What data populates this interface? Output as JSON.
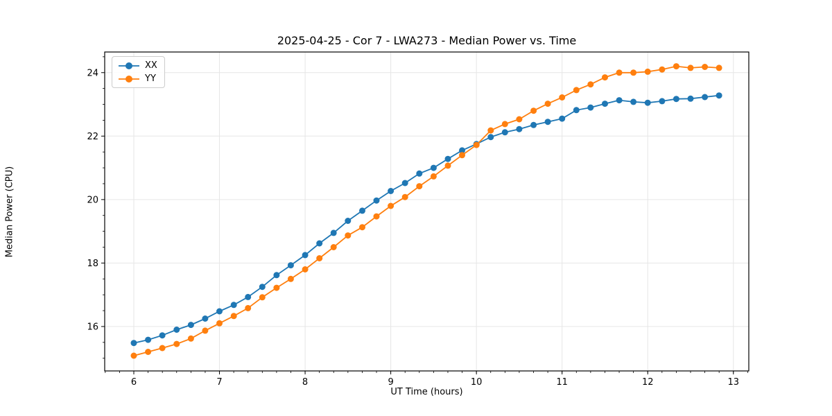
{
  "figure": {
    "background": "#ffffff"
  },
  "chart_data": {
    "type": "line",
    "title": "2025-04-25 - Cor 7 - LWA273 - Median Power vs. Time",
    "xlabel": "UT Time (hours)",
    "ylabel": "Median Power (CPU)",
    "xlim": [
      5.66,
      13.18
    ],
    "ylim": [
      14.6,
      24.65
    ],
    "x_ticks": [
      6,
      7,
      8,
      9,
      10,
      11,
      12,
      13
    ],
    "y_ticks": [
      16,
      18,
      20,
      22,
      24
    ],
    "x_minor_step": 0.1666667,
    "y_minor_step": 0.5,
    "grid": true,
    "grid_color": "#e6e6e6",
    "spine_color": "#000000",
    "legend_position": "upper-left",
    "x": [
      6.0,
      6.167,
      6.333,
      6.5,
      6.667,
      6.833,
      7.0,
      7.167,
      7.333,
      7.5,
      7.667,
      7.833,
      8.0,
      8.167,
      8.333,
      8.5,
      8.667,
      8.833,
      9.0,
      9.167,
      9.333,
      9.5,
      9.667,
      9.833,
      10.0,
      10.167,
      10.333,
      10.5,
      10.667,
      10.833,
      11.0,
      11.167,
      11.333,
      11.5,
      11.667,
      11.833,
      12.0,
      12.167,
      12.333,
      12.5,
      12.667,
      12.833
    ],
    "series": [
      {
        "name": "XX",
        "color": "#1f77b4",
        "values": [
          15.48,
          15.58,
          15.72,
          15.9,
          16.05,
          16.25,
          16.48,
          16.68,
          16.93,
          17.25,
          17.62,
          17.93,
          18.25,
          18.62,
          18.95,
          19.33,
          19.65,
          19.97,
          20.27,
          20.52,
          20.82,
          21.0,
          21.28,
          21.55,
          21.75,
          21.97,
          22.12,
          22.22,
          22.35,
          22.45,
          22.55,
          22.82,
          22.9,
          23.02,
          23.13,
          23.08,
          23.05,
          23.1,
          23.17,
          23.18,
          23.23,
          23.28
        ]
      },
      {
        "name": "YY",
        "color": "#ff7f0e",
        "values": [
          15.08,
          15.2,
          15.32,
          15.45,
          15.62,
          15.87,
          16.1,
          16.33,
          16.58,
          16.92,
          17.22,
          17.5,
          17.8,
          18.15,
          18.5,
          18.87,
          19.13,
          19.47,
          19.8,
          20.08,
          20.42,
          20.73,
          21.07,
          21.4,
          21.72,
          22.18,
          22.38,
          22.53,
          22.8,
          23.02,
          23.22,
          23.45,
          23.63,
          23.85,
          24.0,
          24.0,
          24.03,
          24.1,
          24.2,
          24.15,
          24.18,
          24.15
        ]
      }
    ]
  }
}
